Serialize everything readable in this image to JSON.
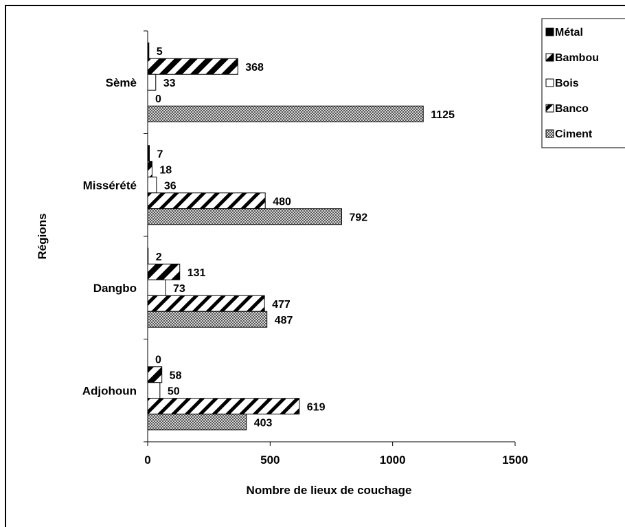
{
  "chart_data": {
    "type": "bar",
    "orientation": "horizontal",
    "categories": [
      "Sèmè",
      "Missérété",
      "Dangbo",
      "Adjohoun"
    ],
    "series": [
      {
        "name": "Métal",
        "values": [
          5,
          7,
          2,
          0
        ],
        "pattern": "solid-black"
      },
      {
        "name": "Bambou",
        "values": [
          368,
          18,
          131,
          58
        ],
        "pattern": "wide-diagonal"
      },
      {
        "name": "Bois",
        "values": [
          33,
          36,
          73,
          50
        ],
        "pattern": "white"
      },
      {
        "name": "Banco",
        "values": [
          0,
          480,
          477,
          619
        ],
        "pattern": "diagonal-stripes"
      },
      {
        "name": "Ciment",
        "values": [
          1125,
          792,
          487,
          403
        ],
        "pattern": "checker-gray"
      }
    ],
    "xlabel": "Nombre de lieux de couchage",
    "ylabel": "Régions",
    "xlim": [
      0,
      1500
    ],
    "xticks": [
      0,
      500,
      1000,
      1500
    ],
    "grid": false,
    "legend": "top-right",
    "data_labels": true
  }
}
